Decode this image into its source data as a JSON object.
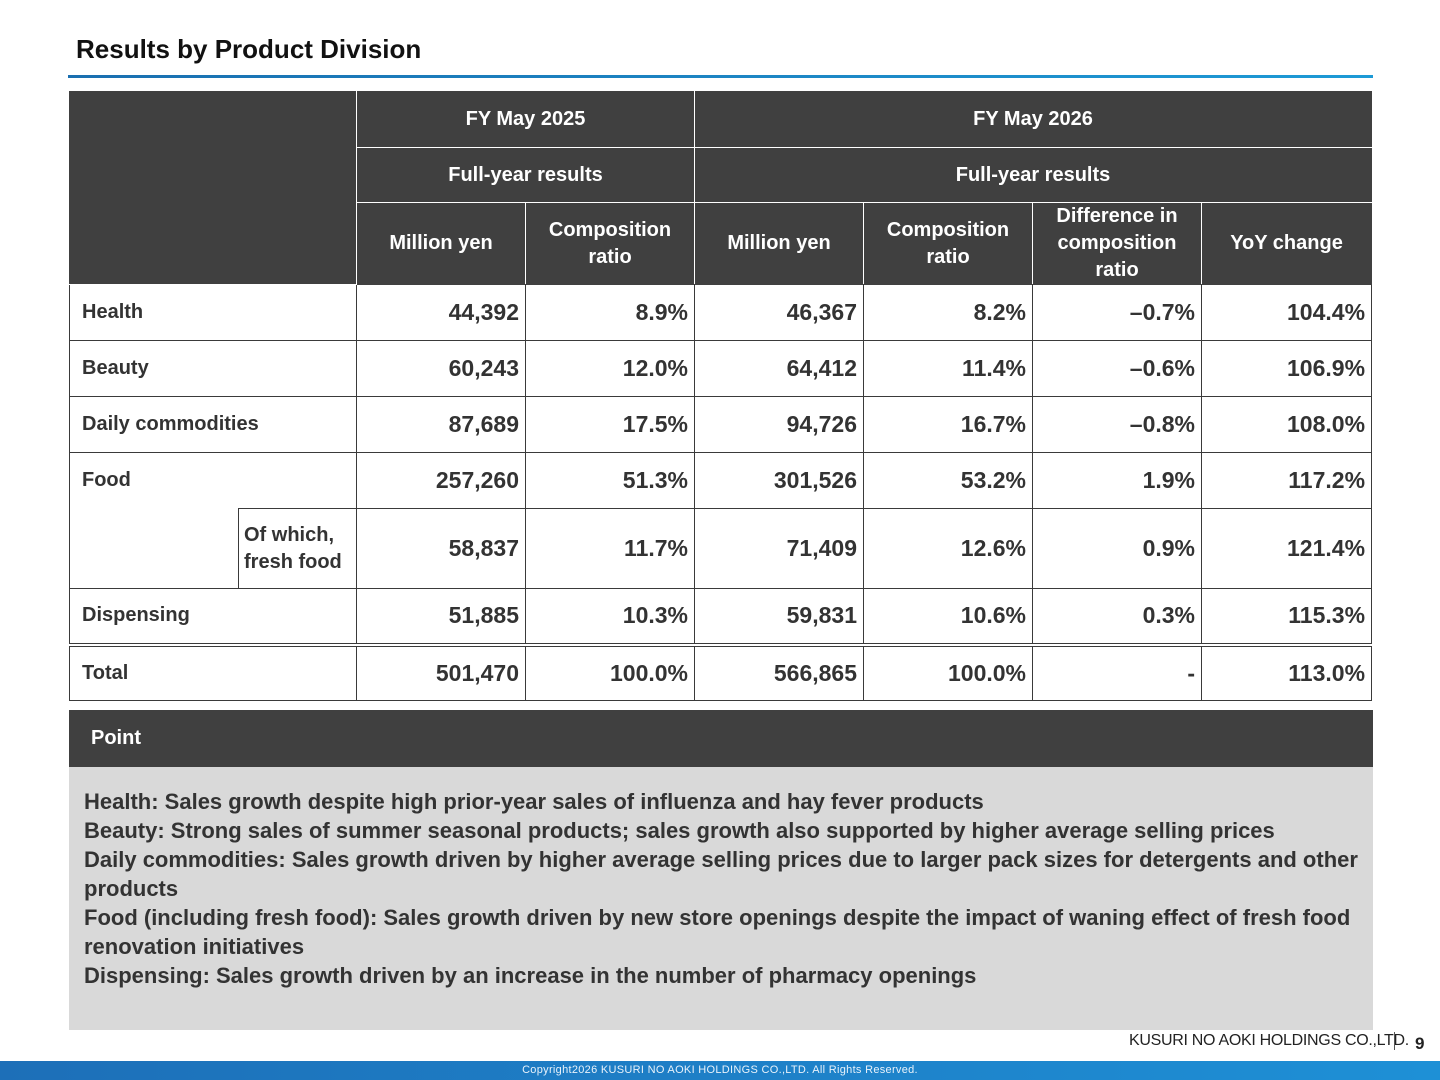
{
  "page": {
    "title": "Results by Product Division",
    "page_number": "9",
    "company_logo": "KUSURI NO AOKI HOLDINGS CO.,LTD.",
    "copyright": "Copyright2026 KUSURI NO AOKI HOLDINGS CO.,LTD. All Rights Reserved."
  },
  "table": {
    "header": {
      "fy_2025": "FY May 2025",
      "fy_2026": "FY May 2026",
      "full_year_2025": "Full-year results",
      "full_year_2026": "Full-year results",
      "million_yen_2025": "Million yen",
      "composition_2025": "Composition ratio",
      "million_yen_2026": "Million yen",
      "composition_2026": "Composition ratio",
      "difference": "Difference in composition ratio",
      "yoy": "YoY change"
    },
    "rows": [
      {
        "label": "Health",
        "values": [
          "44,392",
          "8.9%",
          "46,367",
          "8.2%",
          "–0.7%",
          "104.4%"
        ]
      },
      {
        "label": "Beauty",
        "values": [
          "60,243",
          "12.0%",
          "64,412",
          "11.4%",
          "–0.6%",
          "106.9%"
        ]
      },
      {
        "label": "Daily commodities",
        "values": [
          "87,689",
          "17.5%",
          "94,726",
          "16.7%",
          "–0.8%",
          "108.0%"
        ]
      },
      {
        "label": "Food",
        "values": [
          "257,260",
          "51.3%",
          "301,526",
          "53.2%",
          "1.9%",
          "117.2%"
        ]
      },
      {
        "label": "Of which, fresh food",
        "values": [
          "58,837",
          "11.7%",
          "71,409",
          "12.6%",
          "0.9%",
          "121.4%"
        ]
      },
      {
        "label": "Dispensing",
        "values": [
          "51,885",
          "10.3%",
          "59,831",
          "10.6%",
          "0.3%",
          "115.3%"
        ]
      },
      {
        "label": "Total",
        "values": [
          "501,470",
          "100.0%",
          "566,865",
          "100.0%",
          "-",
          "113.0%"
        ]
      }
    ]
  },
  "point": {
    "heading": "Point",
    "lines": [
      "Health: Sales growth despite high prior-year sales of influenza and hay fever products",
      "Beauty: Strong sales of summer seasonal products; sales growth also supported by higher average selling prices",
      "Daily commodities: Sales growth driven by higher average selling prices due to larger pack sizes for detergents and other products",
      "Food (including fresh food): Sales growth driven by new store openings despite the impact of waning effect of fresh food renovation initiatives",
      "Dispensing: Sales growth driven by an increase in the number of pharmacy openings"
    ]
  }
}
